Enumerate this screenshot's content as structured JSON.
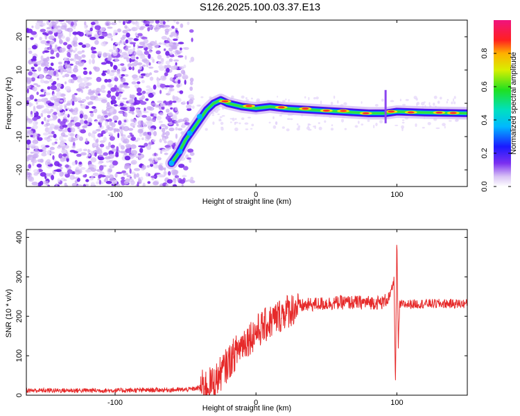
{
  "title": "S126.2025.100.03.37.E13",
  "chart_data": [
    {
      "type": "heatmap",
      "name": "spectrogram",
      "xlabel": "Height of straight line (km)",
      "ylabel": "Frequency (Hz)",
      "xlim": [
        -163,
        150
      ],
      "ylim": [
        -25,
        25
      ],
      "xticks": [
        -100,
        0,
        100
      ],
      "yticks": [
        -20,
        -10,
        0,
        10,
        20
      ],
      "colorbar": {
        "label": "Normalized spectral amplitude",
        "range": [
          0,
          1
        ],
        "ticks": [
          0.0,
          0.2,
          0.4,
          0.6,
          0.8
        ],
        "colormap": "rainbow (white-violet-blue-cyan-green-yellow-red-magenta)"
      },
      "signal_track": {
        "x": [
          -60,
          -55,
          -50,
          -45,
          -40,
          -35,
          -30,
          -25,
          -20,
          -10,
          0,
          10,
          20,
          40,
          60,
          80,
          90,
          92,
          100,
          120,
          150
        ],
        "freq": [
          -18,
          -15,
          -11,
          -8,
          -5,
          -2,
          0,
          1,
          0,
          -1,
          -1.5,
          -1,
          -1.5,
          -2,
          -2.5,
          -3,
          -3,
          -3,
          -2.5,
          -2.8,
          -3
        ]
      }
    },
    {
      "type": "line",
      "name": "snr",
      "xlabel": "Height of straight line (km)",
      "ylabel": "SNR (10 * v/v)",
      "xlim": [
        -163,
        150
      ],
      "ylim": [
        0,
        420
      ],
      "xticks": [
        -100,
        0,
        100
      ],
      "yticks": [
        0,
        100,
        200,
        300,
        400
      ],
      "color": "#e62a2a",
      "series": [
        {
          "x": [
            -163,
            -100,
            -50,
            -40,
            -30,
            -20,
            -10,
            0,
            10,
            20,
            30,
            40,
            60,
            80,
            90,
            95,
            98,
            99,
            100,
            101,
            102,
            105,
            120,
            150
          ],
          "y": [
            12,
            12,
            14,
            18,
            30,
            80,
            130,
            160,
            185,
            210,
            225,
            230,
            235,
            235,
            235,
            250,
            290,
            20,
            400,
            120,
            230,
            230,
            232,
            232
          ]
        }
      ]
    }
  ]
}
